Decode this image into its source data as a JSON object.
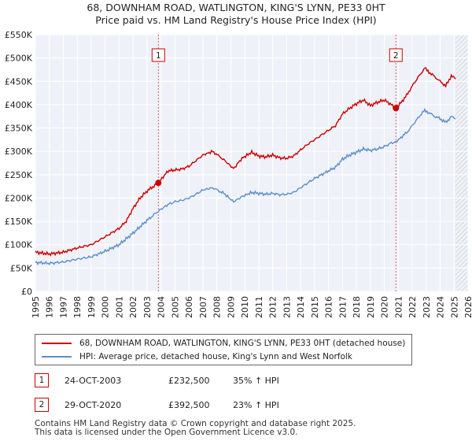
{
  "title_line1": "68, DOWNHAM ROAD, WATLINGTON, KING'S LYNN, PE33 0HT",
  "title_line2": "Price paid vs. HM Land Registry's House Price Index (HPI)",
  "chart_data": {
    "type": "line",
    "x_range": [
      1995,
      2026
    ],
    "ylim": [
      0,
      550000
    ],
    "y_ticks": [
      0,
      50000,
      100000,
      150000,
      200000,
      250000,
      300000,
      350000,
      400000,
      450000,
      500000,
      550000
    ],
    "y_tick_labels": [
      "£0",
      "£50K",
      "£100K",
      "£150K",
      "£200K",
      "£250K",
      "£300K",
      "£350K",
      "£400K",
      "£450K",
      "£500K",
      "£550K"
    ],
    "x_ticks": [
      1995,
      1996,
      1997,
      1998,
      1999,
      2000,
      2001,
      2002,
      2003,
      2004,
      2005,
      2006,
      2007,
      2008,
      2009,
      2010,
      2011,
      2012,
      2013,
      2014,
      2015,
      2016,
      2017,
      2018,
      2019,
      2020,
      2021,
      2022,
      2023,
      2024,
      2025,
      2026
    ],
    "grid": true,
    "series": [
      {
        "name": "68, DOWNHAM ROAD, WATLINGTON, KING'S LYNN, PE33 0HT (detached house)",
        "color": "#cc0000",
        "x": [
          1995.0,
          1996.0,
          1997.0,
          1998.0,
          1999.0,
          2000.0,
          2001.0,
          2001.5,
          2002.0,
          2002.5,
          2003.0,
          2003.81,
          2004.5,
          2005.0,
          2005.5,
          2006.0,
          2006.5,
          2007.0,
          2007.7,
          2008.5,
          2009.2,
          2009.8,
          2010.5,
          2011.0,
          2011.5,
          2012.0,
          2012.5,
          2013.0,
          2013.5,
          2014.0,
          2014.5,
          2015.0,
          2015.5,
          2016.0,
          2016.5,
          2017.0,
          2017.5,
          2018.0,
          2018.5,
          2019.0,
          2019.5,
          2020.0,
          2020.5,
          2020.83,
          2021.2,
          2021.6,
          2022.0,
          2022.5,
          2022.9,
          2023.2,
          2023.6,
          2024.0,
          2024.4,
          2024.8,
          2025.1
        ],
        "values": [
          84000,
          80000,
          84000,
          93000,
          100000,
          117000,
          135000,
          150000,
          178000,
          200000,
          215000,
          232500,
          258000,
          260000,
          262000,
          268000,
          280000,
          292000,
          300000,
          282000,
          263000,
          285000,
          298000,
          290000,
          288000,
          292000,
          286000,
          285000,
          290000,
          303000,
          315000,
          325000,
          335000,
          345000,
          355000,
          380000,
          392000,
          402000,
          410000,
          398000,
          405000,
          410000,
          400000,
          392500,
          405000,
          420000,
          440000,
          462000,
          478000,
          470000,
          460000,
          450000,
          440000,
          462000,
          455000
        ]
      },
      {
        "name": "HPI: Average price, detached house, King's Lynn and West Norfolk",
        "color": "#5b8fcc",
        "x": [
          1995.0,
          1996.0,
          1997.0,
          1998.0,
          1999.0,
          2000.0,
          2001.0,
          2002.0,
          2003.0,
          2003.81,
          2004.5,
          2005.0,
          2005.5,
          2006.0,
          2006.5,
          2007.0,
          2007.7,
          2008.5,
          2009.2,
          2009.8,
          2010.5,
          2011.0,
          2011.5,
          2012.0,
          2012.5,
          2013.0,
          2013.5,
          2014.0,
          2014.5,
          2015.0,
          2015.5,
          2016.0,
          2016.5,
          2017.0,
          2017.5,
          2018.0,
          2018.5,
          2019.0,
          2019.5,
          2020.0,
          2020.5,
          2020.83,
          2021.2,
          2021.6,
          2022.0,
          2022.5,
          2022.9,
          2023.2,
          2023.6,
          2024.0,
          2024.4,
          2024.8,
          2025.1
        ],
        "values": [
          62000,
          60000,
          63000,
          69000,
          74000,
          86000,
          100000,
          125000,
          152000,
          172000,
          186000,
          192000,
          195000,
          200000,
          208000,
          217000,
          222000,
          210000,
          192000,
          203000,
          212000,
          210000,
          208000,
          210000,
          207000,
          208000,
          212000,
          222000,
          232000,
          242000,
          250000,
          258000,
          266000,
          283000,
          292000,
          298000,
          305000,
          302000,
          305000,
          310000,
          318000,
          320000,
          330000,
          340000,
          355000,
          375000,
          388000,
          383000,
          375000,
          370000,
          362000,
          374000,
          370000
        ]
      }
    ],
    "sale_markers": [
      {
        "label": "1",
        "x": 2003.81,
        "value": 232500
      },
      {
        "label": "2",
        "x": 2020.83,
        "value": 392500
      }
    ],
    "forecast_start": 2025.1
  },
  "legend": {
    "red_label": "68, DOWNHAM ROAD, WATLINGTON, KING'S LYNN, PE33 0HT (detached house)",
    "blue_label": "HPI: Average price, detached house, King's Lynn and West Norfolk"
  },
  "sales": [
    {
      "num": "1",
      "date": "24-OCT-2003",
      "price": "£232,500",
      "hpi": "35% ↑ HPI"
    },
    {
      "num": "2",
      "date": "29-OCT-2020",
      "price": "£392,500",
      "hpi": "23% ↑ HPI"
    }
  ],
  "footer_line1": "Contains HM Land Registry data © Crown copyright and database right 2025.",
  "footer_line2": "This data is licensed under the Open Government Licence v3.0."
}
